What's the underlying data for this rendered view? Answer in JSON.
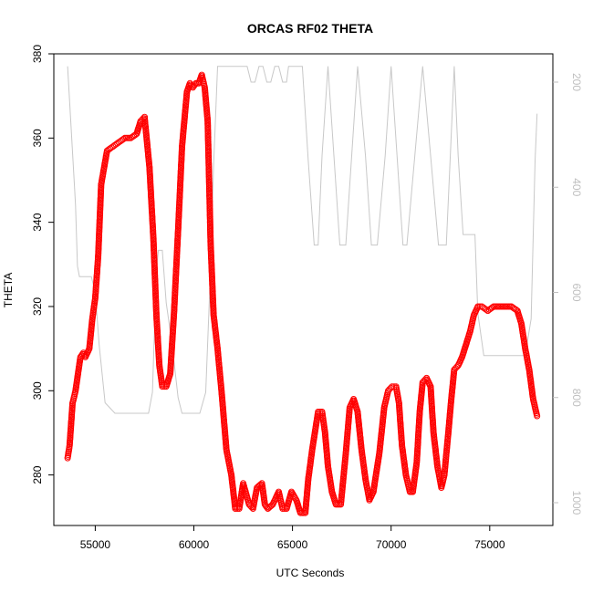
{
  "chart_data": {
    "type": "scatter",
    "title": "ORCAS RF02 THETA",
    "xlabel": "UTC Seconds",
    "ylabel": "THETA",
    "xlim": [
      52900,
      78200
    ],
    "ylim": [
      268,
      380
    ],
    "x_ticks": [
      55000,
      60000,
      65000,
      70000,
      75000
    ],
    "y_ticks": [
      280,
      300,
      320,
      340,
      360,
      380
    ],
    "grid": false,
    "legend": "none",
    "series": [
      {
        "marker": "open-circle",
        "color": "#ff0000",
        "x": [
          53600,
          53700,
          53850,
          54000,
          54250,
          54400,
          54500,
          54700,
          54850,
          55000,
          55150,
          55300,
          55600,
          55900,
          56200,
          56500,
          56800,
          57100,
          57300,
          57500,
          57750,
          57950,
          58100,
          58250,
          58400,
          58600,
          58800,
          59000,
          59200,
          59400,
          59650,
          59800,
          59950,
          60100,
          60250,
          60400,
          60550,
          60700,
          60850,
          61000,
          61200,
          61400,
          61650,
          61900,
          62100,
          62300,
          62500,
          62800,
          63000,
          63200,
          63450,
          63600,
          63750,
          64000,
          64300,
          64500,
          64700,
          64950,
          65200,
          65400,
          65650,
          65800,
          66000,
          66300,
          66500,
          66650,
          66800,
          67000,
          67200,
          67450,
          67700,
          67900,
          68100,
          68300,
          68500,
          68700,
          68900,
          69100,
          69400,
          69650,
          69850,
          70050,
          70250,
          70400,
          70550,
          70750,
          70950,
          71100,
          71300,
          71450,
          71600,
          71800,
          72000,
          72150,
          72350,
          72550,
          72700,
          72900,
          73050,
          73200,
          73400,
          73600,
          73800,
          74000,
          74200,
          74400,
          74600,
          74900,
          75200,
          75500,
          75800,
          76100,
          76400,
          76600,
          76800,
          77000,
          77200,
          77400
        ],
        "y": [
          284,
          287,
          297,
          300,
          308,
          309,
          308,
          310,
          317,
          322,
          332,
          349,
          357,
          358,
          359,
          360,
          360,
          361,
          364,
          365,
          353,
          336,
          318,
          306,
          301,
          301,
          304,
          319,
          338,
          358,
          371,
          373,
          372,
          373,
          373,
          375,
          372,
          364,
          335,
          318,
          310,
          300,
          286,
          280,
          272,
          272,
          278,
          273,
          272,
          277,
          278,
          273,
          272,
          273,
          276,
          272,
          272,
          276,
          274,
          271,
          271,
          279,
          286,
          295,
          295,
          290,
          282,
          276,
          273,
          273,
          285,
          296,
          298,
          295,
          286,
          279,
          274,
          276,
          285,
          296,
          300,
          301,
          301,
          297,
          287,
          280,
          276,
          276,
          283,
          295,
          302,
          303,
          301,
          290,
          282,
          277,
          280,
          290,
          298,
          305,
          306,
          308,
          311,
          314,
          318,
          320,
          320,
          319,
          320,
          320,
          320,
          320,
          319,
          316,
          310,
          305,
          298,
          294
        ]
      },
      {
        "name": "",
        "axis": "right",
        "axis_inverted": true,
        "axis_ticks": [
          200,
          400,
          600,
          800,
          1000
        ],
        "color": "#c8c8c8",
        "style": "line",
        "x": [
          53600,
          53950,
          54000,
          54100,
          54200,
          54400,
          54800,
          55000,
          55200,
          55500,
          56000,
          56500,
          57000,
          57500,
          57700,
          57900,
          58100,
          58200,
          58400,
          58600,
          58900,
          59200,
          59400,
          59650,
          59900,
          60100,
          60300,
          60600,
          60800,
          61000,
          61200,
          61500,
          61850,
          62100,
          62300,
          62500,
          62700,
          62900,
          63100,
          63300,
          63500,
          63700,
          63900,
          64100,
          64300,
          64500,
          64700,
          64800,
          65000,
          65200,
          65500,
          65800,
          66100,
          66300,
          66500,
          66800,
          67100,
          67400,
          67700,
          68000,
          68300,
          68700,
          69000,
          69300,
          69700,
          70000,
          70300,
          70600,
          70800,
          71200,
          71600,
          72000,
          72400,
          72800,
          73000,
          73200,
          73400,
          73650,
          73800,
          74000,
          74250,
          74400,
          74700,
          75000,
          75400,
          75800,
          76200,
          76500,
          76800,
          77100,
          77300,
          77400
        ],
        "y": [
          170,
          400,
          435,
          550,
          570,
          570,
          570,
          600,
          700,
          810,
          830,
          830,
          830,
          830,
          830,
          790,
          560,
          520,
          520,
          620,
          700,
          800,
          830,
          830,
          830,
          830,
          830,
          790,
          600,
          360,
          170,
          170,
          170,
          170,
          170,
          170,
          170,
          200,
          200,
          170,
          170,
          200,
          200,
          170,
          170,
          200,
          200,
          170,
          170,
          170,
          170,
          350,
          510,
          510,
          340,
          170,
          340,
          510,
          510,
          340,
          170,
          340,
          510,
          510,
          340,
          170,
          340,
          510,
          510,
          340,
          170,
          340,
          510,
          510,
          340,
          170,
          340,
          490,
          490,
          490,
          490,
          640,
          720,
          720,
          720,
          720,
          720,
          720,
          720,
          650,
          350,
          260
        ]
      }
    ]
  }
}
